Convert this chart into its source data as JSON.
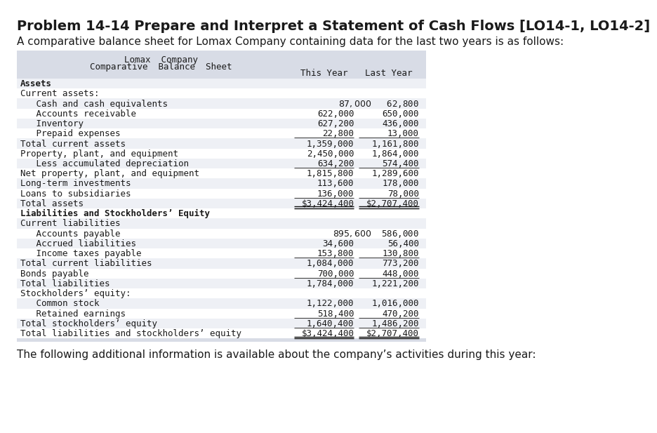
{
  "title": "Problem 14-14 Prepare and Interpret a Statement of Cash Flows [LO14-1, LO14-2]",
  "subtitle": "A comparative balance sheet for Lomax Company containing data for the last two years is as follows:",
  "footer": "The following additional information is available about the company’s activities during this year:",
  "table_title_line1": "Lomax  Company",
  "table_title_line2": "Comparative  Balance  Sheet",
  "col_header1": "This Year",
  "col_header2": "Last Year",
  "header_bg": "#d8dce6",
  "row_bg_light": "#eef0f5",
  "row_bg_white": "#ffffff",
  "rows": [
    {
      "label": "Assets",
      "val1": "",
      "val2": "",
      "style": "bold",
      "indent": 0,
      "bg": "light",
      "underline": false,
      "double_underline": false
    },
    {
      "label": "Current assets:",
      "val1": "",
      "val2": "",
      "style": "normal",
      "indent": 0,
      "bg": "white",
      "underline": false,
      "double_underline": false
    },
    {
      "label": "   Cash and cash equivalents",
      "val1": "$   87,000  $   62,800",
      "val2": "",
      "style": "normal",
      "indent": 0,
      "bg": "light",
      "underline": false,
      "double_underline": false,
      "combined": true
    },
    {
      "label": "   Accounts receivable",
      "val1": "622,000",
      "val2": "650,000",
      "style": "normal",
      "indent": 0,
      "bg": "white",
      "underline": false,
      "double_underline": false
    },
    {
      "label": "   Inventory",
      "val1": "627,200",
      "val2": "436,000",
      "style": "normal",
      "indent": 0,
      "bg": "light",
      "underline": false,
      "double_underline": false
    },
    {
      "label": "   Prepaid expenses",
      "val1": "22,800",
      "val2": "13,000",
      "style": "normal",
      "indent": 0,
      "bg": "white",
      "underline": true,
      "double_underline": false
    },
    {
      "label": "Total current assets",
      "val1": "1,359,000",
      "val2": "1,161,800",
      "style": "normal",
      "indent": 0,
      "bg": "light",
      "underline": false,
      "double_underline": false
    },
    {
      "label": "Property, plant, and equipment",
      "val1": "2,450,000",
      "val2": "1,864,000",
      "style": "normal",
      "indent": 0,
      "bg": "white",
      "underline": false,
      "double_underline": false
    },
    {
      "label": "   Less accumulated depreciation",
      "val1": "634,200",
      "val2": "574,400",
      "style": "normal",
      "indent": 0,
      "bg": "light",
      "underline": true,
      "double_underline": false
    },
    {
      "label": "Net property, plant, and equipment",
      "val1": "1,815,800",
      "val2": "1,289,600",
      "style": "normal",
      "indent": 0,
      "bg": "white",
      "underline": false,
      "double_underline": false
    },
    {
      "label": "Long-term investments",
      "val1": "113,600",
      "val2": "178,000",
      "style": "normal",
      "indent": 0,
      "bg": "light",
      "underline": false,
      "double_underline": false
    },
    {
      "label": "Loans to subsidiaries",
      "val1": "136,000",
      "val2": "78,000",
      "style": "normal",
      "indent": 0,
      "bg": "white",
      "underline": true,
      "double_underline": false
    },
    {
      "label": "Total assets",
      "val1": "$3,424,400",
      "val2": "$2,707,400",
      "style": "normal",
      "indent": 0,
      "bg": "light",
      "underline": false,
      "double_underline": true
    },
    {
      "label": "Liabilities and Stockholders’ Equity",
      "val1": "",
      "val2": "",
      "style": "bold",
      "indent": 0,
      "bg": "white",
      "underline": false,
      "double_underline": false
    },
    {
      "label": "Current liabilities",
      "val1": "",
      "val2": "",
      "style": "normal",
      "indent": 0,
      "bg": "light",
      "underline": false,
      "double_underline": false
    },
    {
      "label": "   Accounts payable",
      "val1": "$  895,600  $  586,000",
      "val2": "",
      "style": "normal",
      "indent": 0,
      "bg": "white",
      "underline": false,
      "double_underline": false,
      "combined": true
    },
    {
      "label": "   Accrued liabilities",
      "val1": "34,600",
      "val2": "56,400",
      "style": "normal",
      "indent": 0,
      "bg": "light",
      "underline": false,
      "double_underline": false
    },
    {
      "label": "   Income taxes payable",
      "val1": "153,800",
      "val2": "130,800",
      "style": "normal",
      "indent": 0,
      "bg": "white",
      "underline": true,
      "double_underline": false
    },
    {
      "label": "Total current liabilities",
      "val1": "1,084,000",
      "val2": "773,200",
      "style": "normal",
      "indent": 0,
      "bg": "light",
      "underline": false,
      "double_underline": false
    },
    {
      "label": "Bonds payable",
      "val1": "700,000",
      "val2": "448,000",
      "style": "normal",
      "indent": 0,
      "bg": "white",
      "underline": true,
      "double_underline": false
    },
    {
      "label": "Total liabilities",
      "val1": "1,784,000",
      "val2": "1,221,200",
      "style": "normal",
      "indent": 0,
      "bg": "light",
      "underline": false,
      "double_underline": false
    },
    {
      "label": "Stockholders’ equity:",
      "val1": "",
      "val2": "",
      "style": "normal",
      "indent": 0,
      "bg": "white",
      "underline": false,
      "double_underline": false
    },
    {
      "label": "   Common stock",
      "val1": "1,122,000",
      "val2": "1,016,000",
      "style": "normal",
      "indent": 0,
      "bg": "light",
      "underline": false,
      "double_underline": false
    },
    {
      "label": "   Retained earnings",
      "val1": "518,400",
      "val2": "470,200",
      "style": "normal",
      "indent": 0,
      "bg": "white",
      "underline": true,
      "double_underline": false
    },
    {
      "label": "Total stockholders’ equity",
      "val1": "1,640,400",
      "val2": "1,486,200",
      "style": "normal",
      "indent": 0,
      "bg": "light",
      "underline": true,
      "double_underline": false
    },
    {
      "label": "Total liabilities and stockholders’ equity",
      "val1": "$3,424,400",
      "val2": "$2,707,400",
      "style": "normal",
      "indent": 0,
      "bg": "white",
      "underline": false,
      "double_underline": true
    }
  ]
}
